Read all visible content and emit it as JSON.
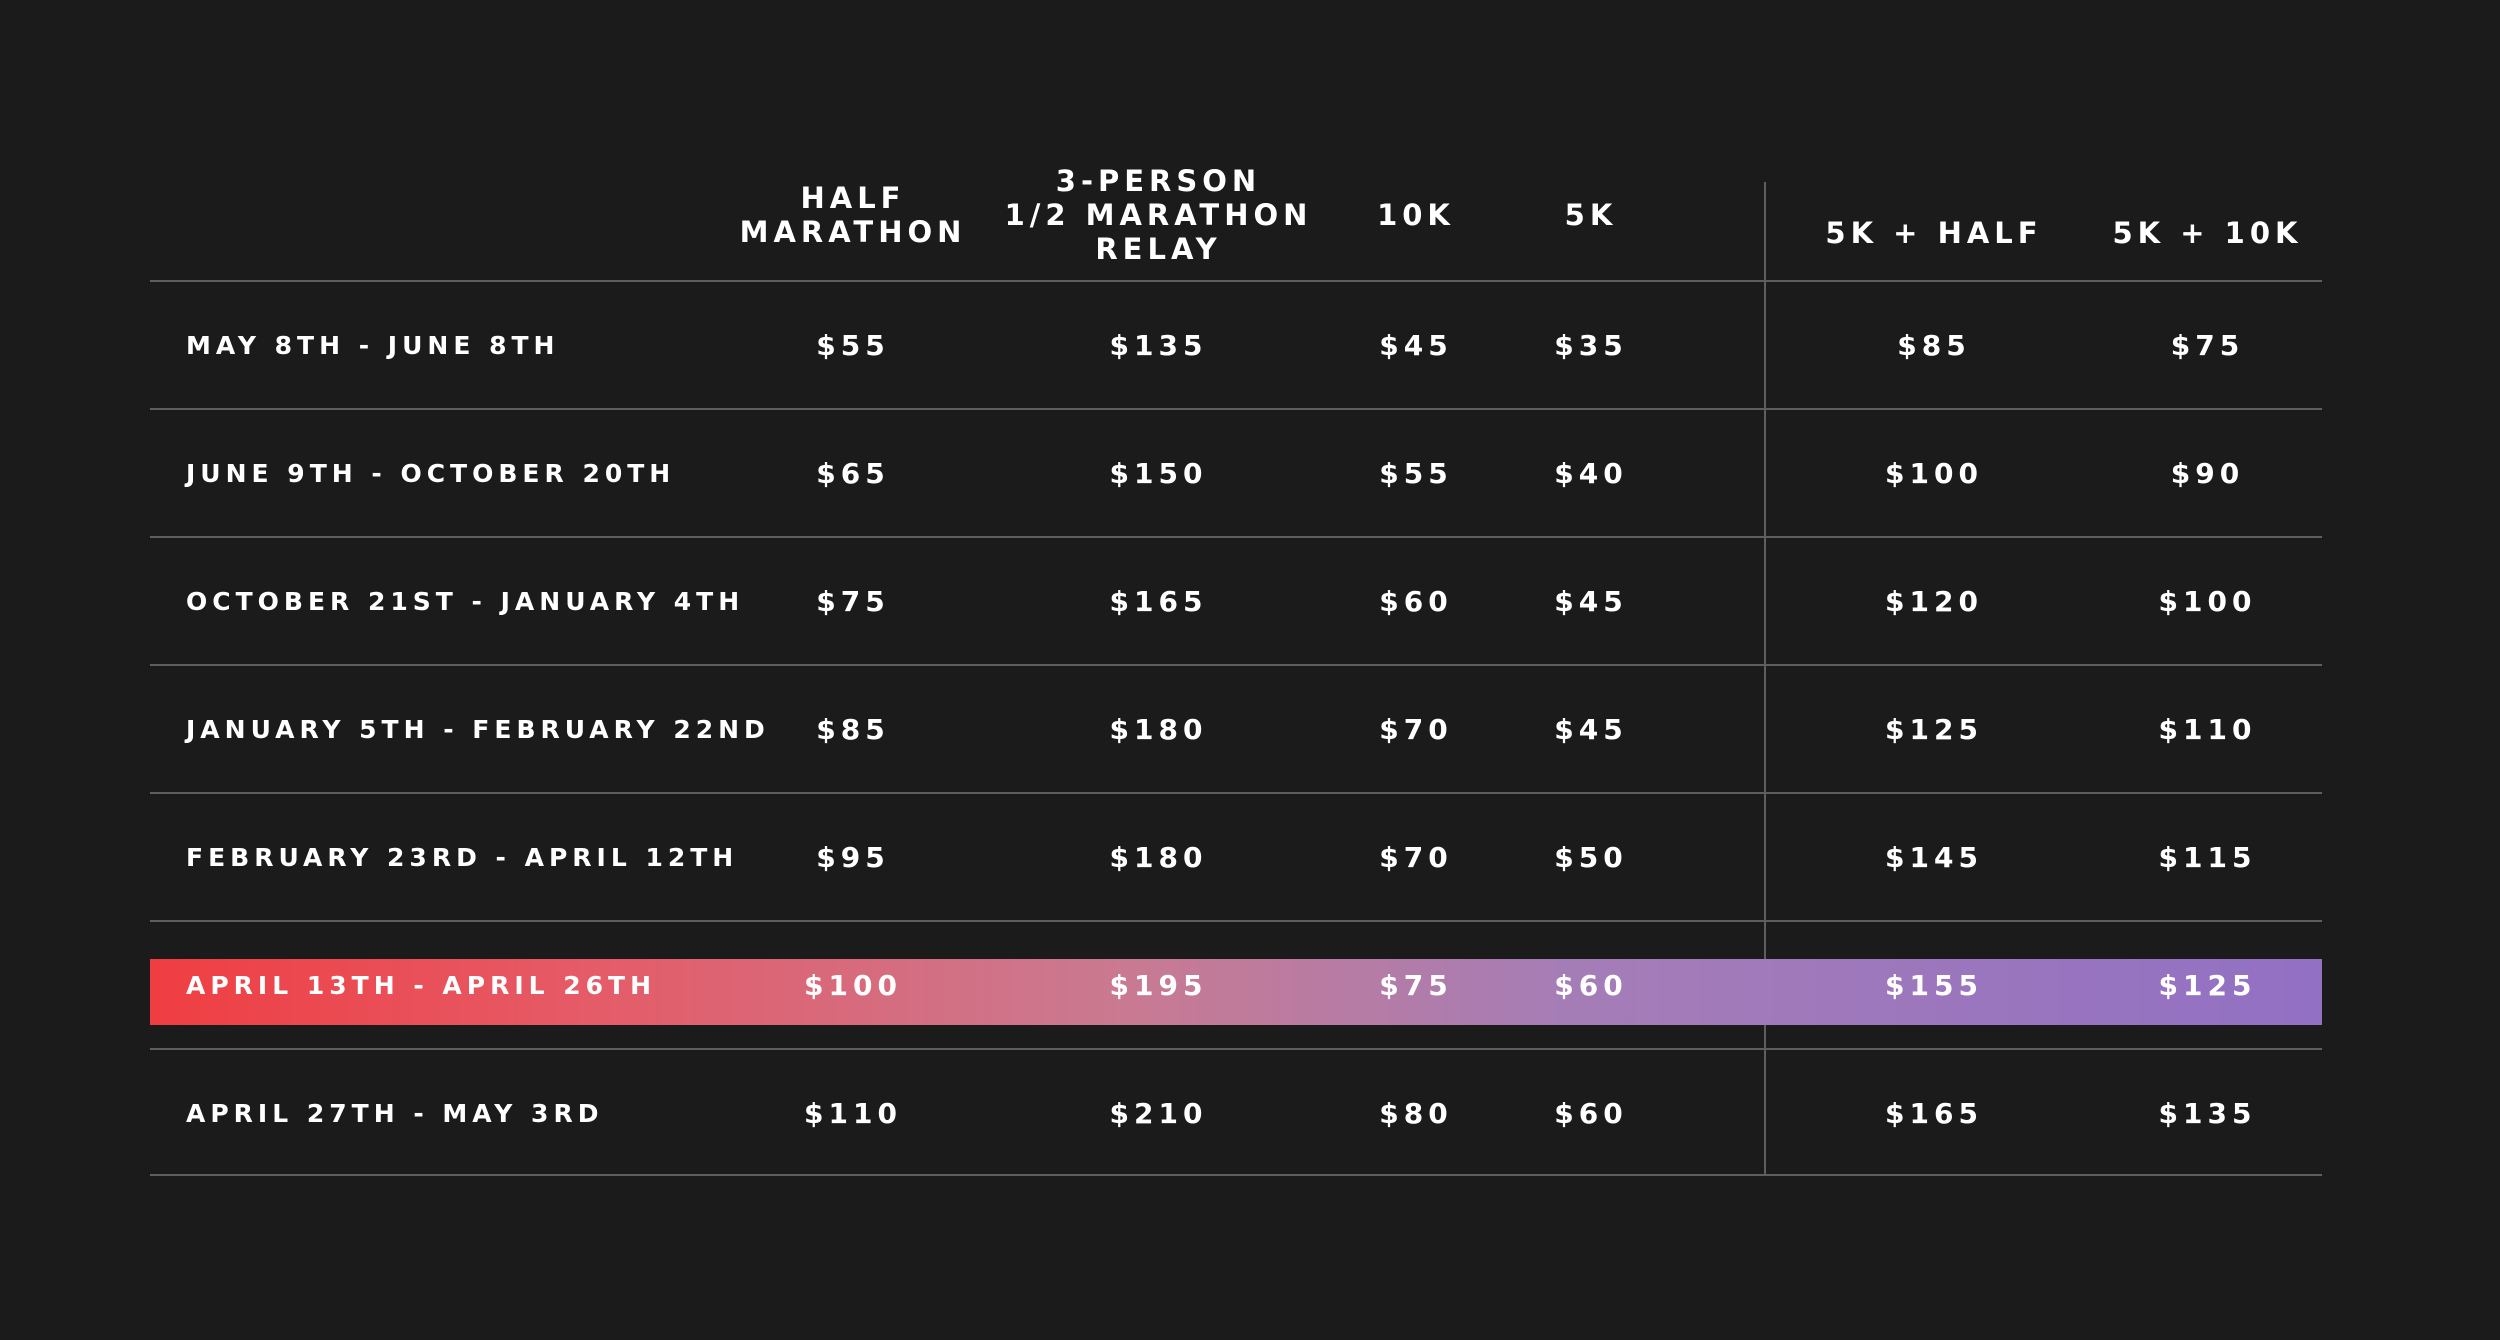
{
  "columns": [
    {
      "lines": [
        "HALF",
        "MARATHON"
      ]
    },
    {
      "lines": [
        "3-PERSON",
        "1/2 MARATHON",
        "RELAY"
      ]
    },
    {
      "lines": [
        "10K"
      ]
    },
    {
      "lines": [
        "5K"
      ]
    },
    {
      "lines": [
        "5K + HALF"
      ]
    },
    {
      "lines": [
        "5K + 10K"
      ]
    }
  ],
  "rows": [
    {
      "period": "MAY 8TH - JUNE 8TH",
      "prices": [
        "$55",
        "$135",
        "$45",
        "$35",
        "$85",
        "$75"
      ]
    },
    {
      "period": "JUNE 9TH - OCTOBER 20TH",
      "prices": [
        "$65",
        "$150",
        "$55",
        "$40",
        "$100",
        "$90"
      ]
    },
    {
      "period": "OCTOBER 21ST - JANUARY 4TH",
      "prices": [
        "$75",
        "$165",
        "$60",
        "$45",
        "$120",
        "$100"
      ]
    },
    {
      "period": "JANUARY 5TH - FEBRUARY 22ND",
      "prices": [
        "$85",
        "$180",
        "$70",
        "$45",
        "$125",
        "$110"
      ]
    },
    {
      "period": "FEBRUARY 23RD - APRIL 12TH",
      "prices": [
        "$95",
        "$180",
        "$70",
        "$50",
        "$145",
        "$115"
      ]
    },
    {
      "period": "APRIL 13TH - APRIL 26TH",
      "prices": [
        "$100",
        "$195",
        "$75",
        "$60",
        "$155",
        "$125"
      ]
    },
    {
      "period": "APRIL 27TH - MAY 3RD",
      "prices": [
        "$110",
        "$210",
        "$80",
        "$60",
        "$165",
        "$135"
      ]
    }
  ],
  "highlighted_row": 5,
  "colors": {
    "background": "#1b1b1c",
    "text": "#ffffff",
    "rule": "#5e5e60",
    "highlight_start": "#ef3e42",
    "highlight_end": "#9270c4"
  }
}
